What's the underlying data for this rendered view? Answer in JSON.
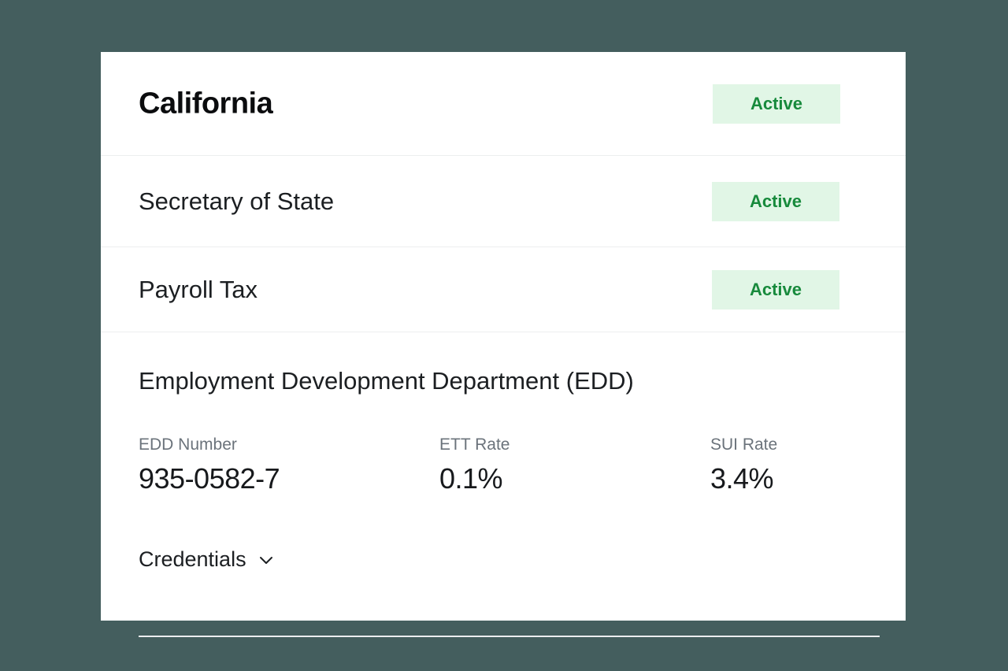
{
  "state": {
    "name": "California",
    "status": "Active"
  },
  "agencies": [
    {
      "name": "Secretary of State",
      "status": "Active"
    },
    {
      "name": "Payroll Tax",
      "status": "Active"
    }
  ],
  "edd": {
    "title": "Employment Development Department (EDD)",
    "fields": [
      {
        "label": "EDD Number",
        "value": "935-0582-7"
      },
      {
        "label": "ETT Rate",
        "value": "0.1%"
      },
      {
        "label": "SUI Rate",
        "value": "3.4%"
      }
    ],
    "credentials_label": "Credentials",
    "credentials_icon": "chevron-down-icon"
  },
  "colors": {
    "background": "#445e5e",
    "badge_bg": "#e1f6e6",
    "badge_text": "#178a3c"
  }
}
